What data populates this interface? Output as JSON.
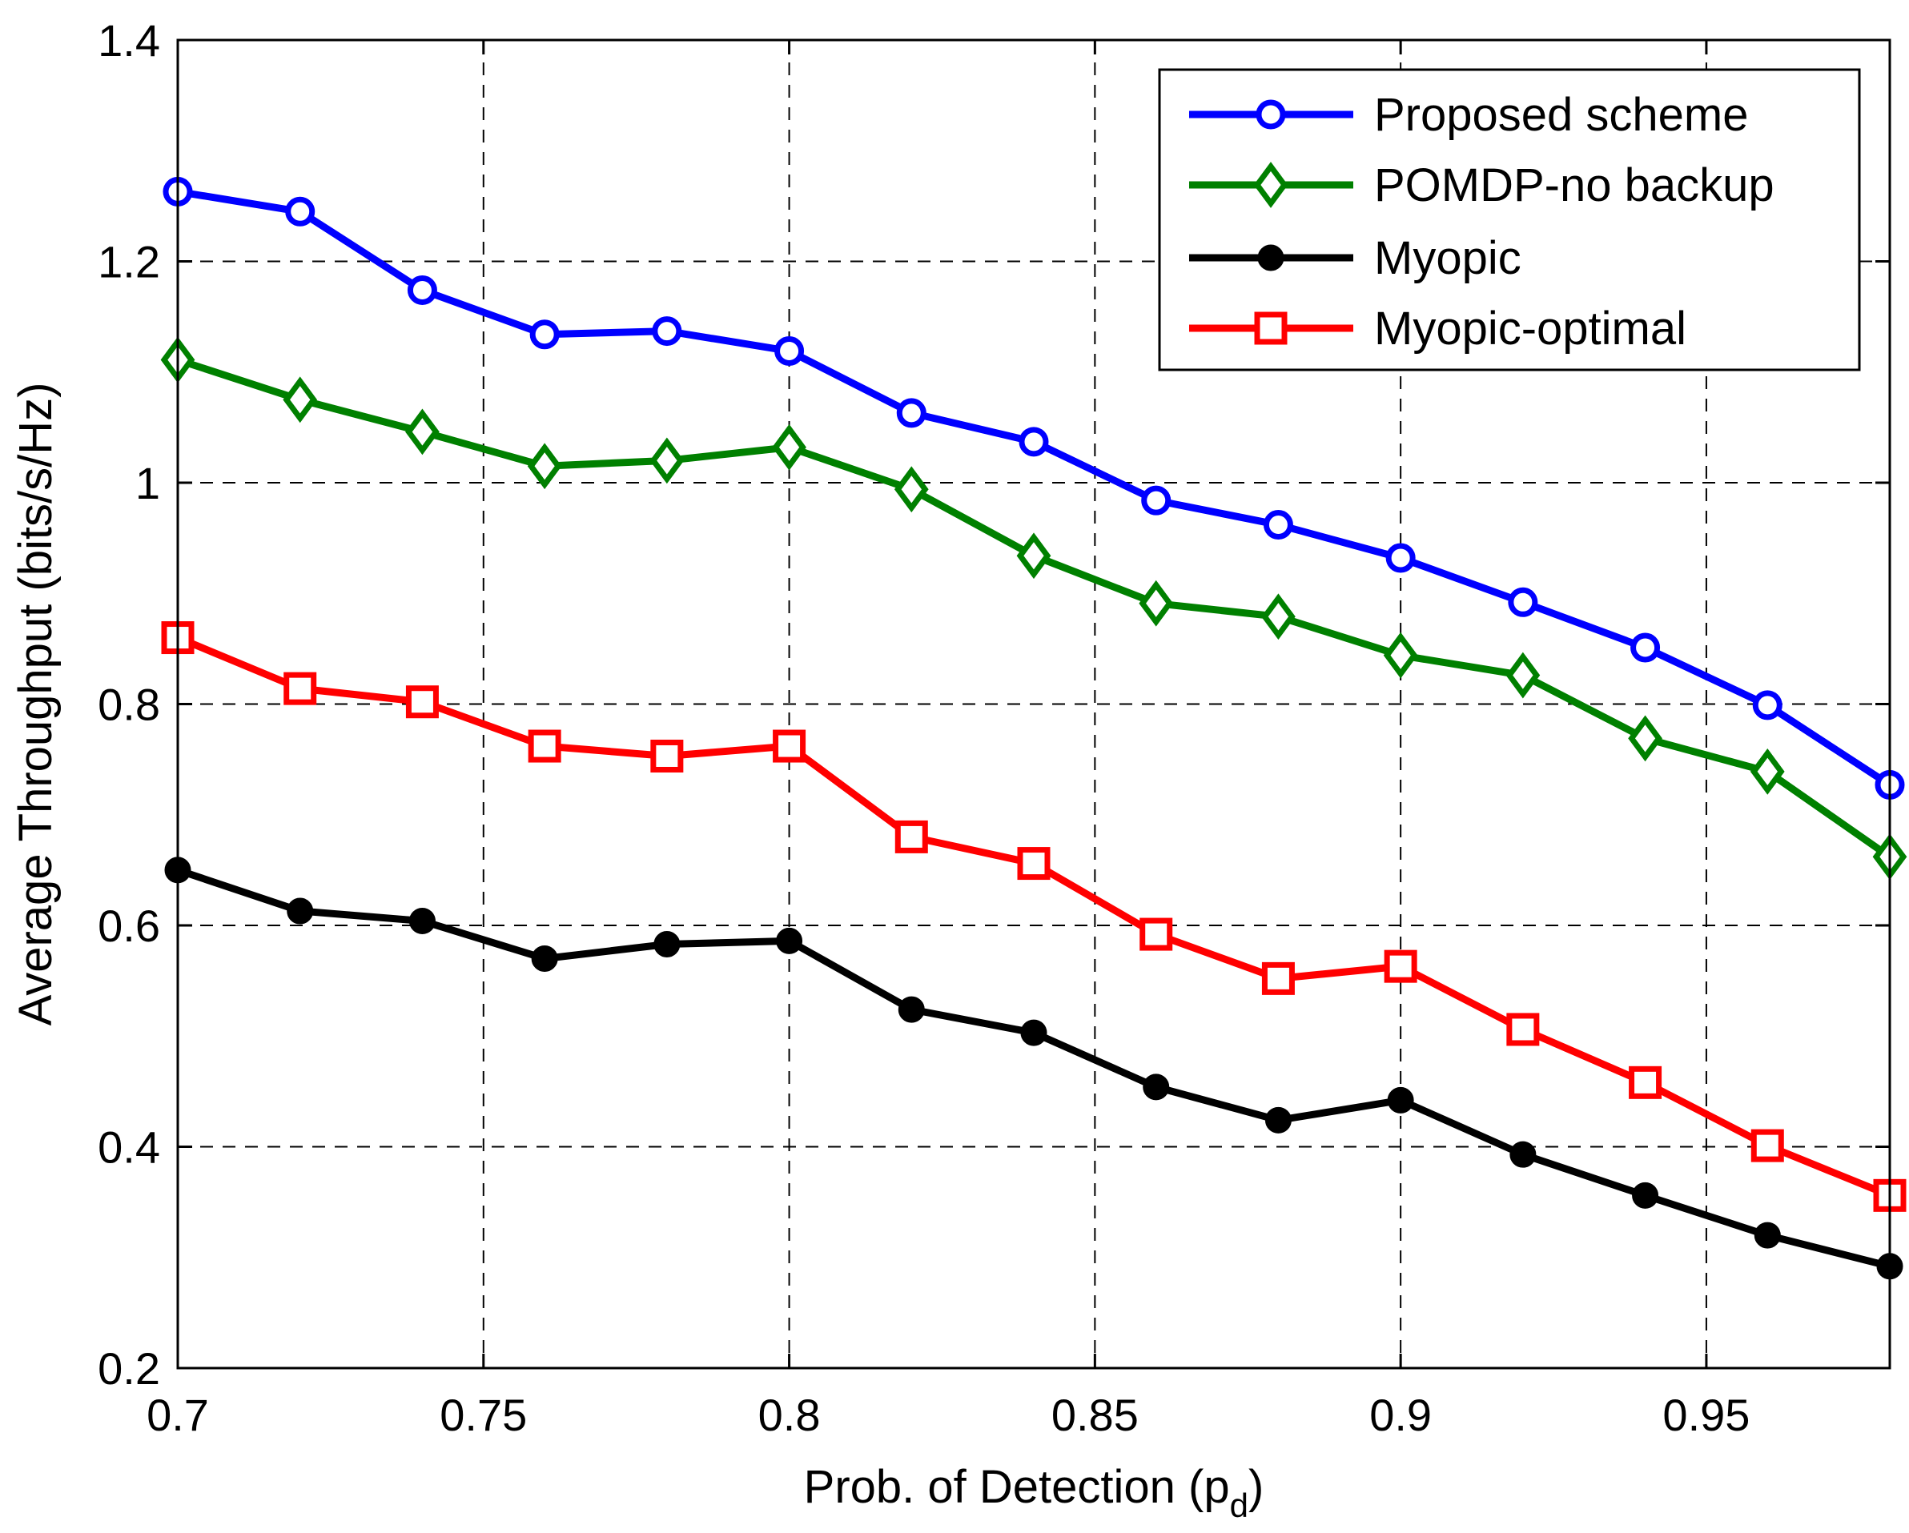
{
  "chart_data": {
    "type": "line",
    "title": "",
    "xlabel": "Prob. of Detection (p",
    "xlabel_subscript": "d",
    "xlabel_suffix": ")",
    "ylabel": "Average Throughput (bits/s/Hz)",
    "xlim": [
      0.7,
      0.98
    ],
    "ylim": [
      0.2,
      1.4
    ],
    "grid": true,
    "legend_position": "top-right",
    "x_ticks": [
      0.7,
      0.75,
      0.8,
      0.85,
      0.9,
      0.95
    ],
    "x_tick_labels": [
      "0.7",
      "0.75",
      "0.8",
      "0.85",
      "0.9",
      "0.95"
    ],
    "y_ticks": [
      0.2,
      0.4,
      0.6,
      0.8,
      1.0,
      1.2,
      1.4
    ],
    "y_tick_labels": [
      "0.2",
      "0.4",
      "0.6",
      "0.8",
      "1",
      "1.2",
      "1.4"
    ],
    "x": [
      0.7,
      0.72,
      0.74,
      0.76,
      0.78,
      0.8,
      0.82,
      0.84,
      0.86,
      0.88,
      0.9,
      0.92,
      0.94,
      0.96,
      0.98
    ],
    "series": [
      {
        "name": "Proposed scheme",
        "color": "#0000ff",
        "marker": "circle",
        "values": [
          1.263,
          1.245,
          1.174,
          1.134,
          1.137,
          1.119,
          1.063,
          1.037,
          0.984,
          0.962,
          0.932,
          0.892,
          0.851,
          0.799,
          0.727
        ]
      },
      {
        "name": "POMDP-no backup",
        "color": "#008000",
        "marker": "diamond",
        "values": [
          1.111,
          1.075,
          1.046,
          1.015,
          1.02,
          1.032,
          0.994,
          0.934,
          0.891,
          0.879,
          0.844,
          0.826,
          0.769,
          0.739,
          0.662
        ]
      },
      {
        "name": "Myopic",
        "color": "#000000",
        "marker": "filled-circle",
        "values": [
          0.65,
          0.613,
          0.604,
          0.57,
          0.583,
          0.586,
          0.524,
          0.503,
          0.454,
          0.424,
          0.442,
          0.393,
          0.356,
          0.32,
          0.292
        ]
      },
      {
        "name": "Myopic-optimal",
        "color": "#ff0000",
        "marker": "square",
        "values": [
          0.86,
          0.814,
          0.802,
          0.762,
          0.753,
          0.762,
          0.68,
          0.656,
          0.592,
          0.552,
          0.563,
          0.506,
          0.458,
          0.401,
          0.356
        ]
      }
    ]
  }
}
